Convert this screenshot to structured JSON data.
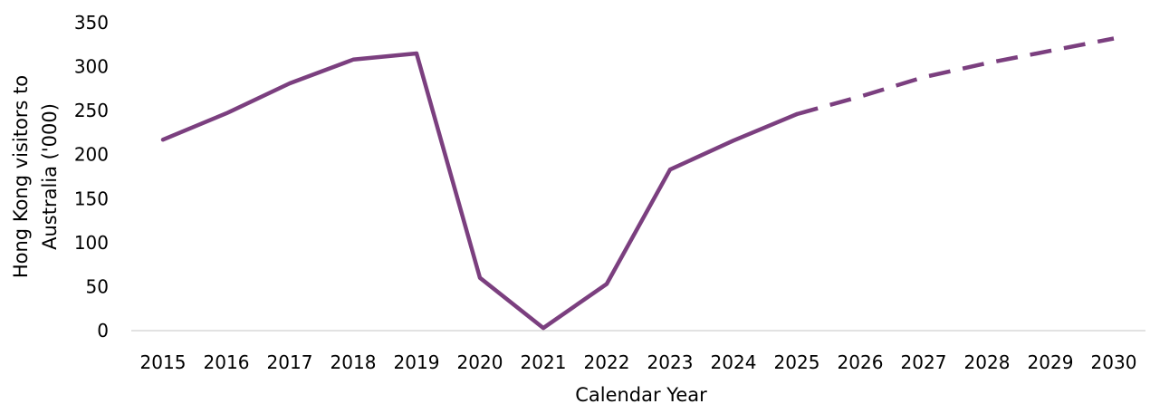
{
  "chart_data": {
    "type": "line",
    "title": "",
    "xlabel": "Calendar Year",
    "ylabel_lines": [
      "Hong Kong visitors to",
      "Australia ('000)"
    ],
    "x": [
      "2015",
      "2016",
      "2017",
      "2018",
      "2019",
      "2020",
      "2021",
      "2022",
      "2023",
      "2024",
      "2025",
      "2026",
      "2027",
      "2028",
      "2029",
      "2030"
    ],
    "yticks": [
      "0",
      "50",
      "100",
      "150",
      "200",
      "250",
      "300",
      "350"
    ],
    "ylim": [
      0,
      350
    ],
    "grid": false,
    "legend": "none",
    "series": [
      {
        "style": "solid",
        "color": "#7B3F7F",
        "x": [
          "2015",
          "2016",
          "2017",
          "2018",
          "2019",
          "2020",
          "2021",
          "2022",
          "2023",
          "2024",
          "2025"
        ],
        "values": [
          217,
          247,
          281,
          308,
          315,
          60,
          3,
          53,
          183,
          216,
          246
        ]
      },
      {
        "style": "dashed",
        "color": "#7B3F7F",
        "x": [
          "2025",
          "2026",
          "2027",
          "2028",
          "2029",
          "2030"
        ],
        "values": [
          246,
          266,
          288,
          304,
          318,
          332
        ]
      }
    ]
  }
}
